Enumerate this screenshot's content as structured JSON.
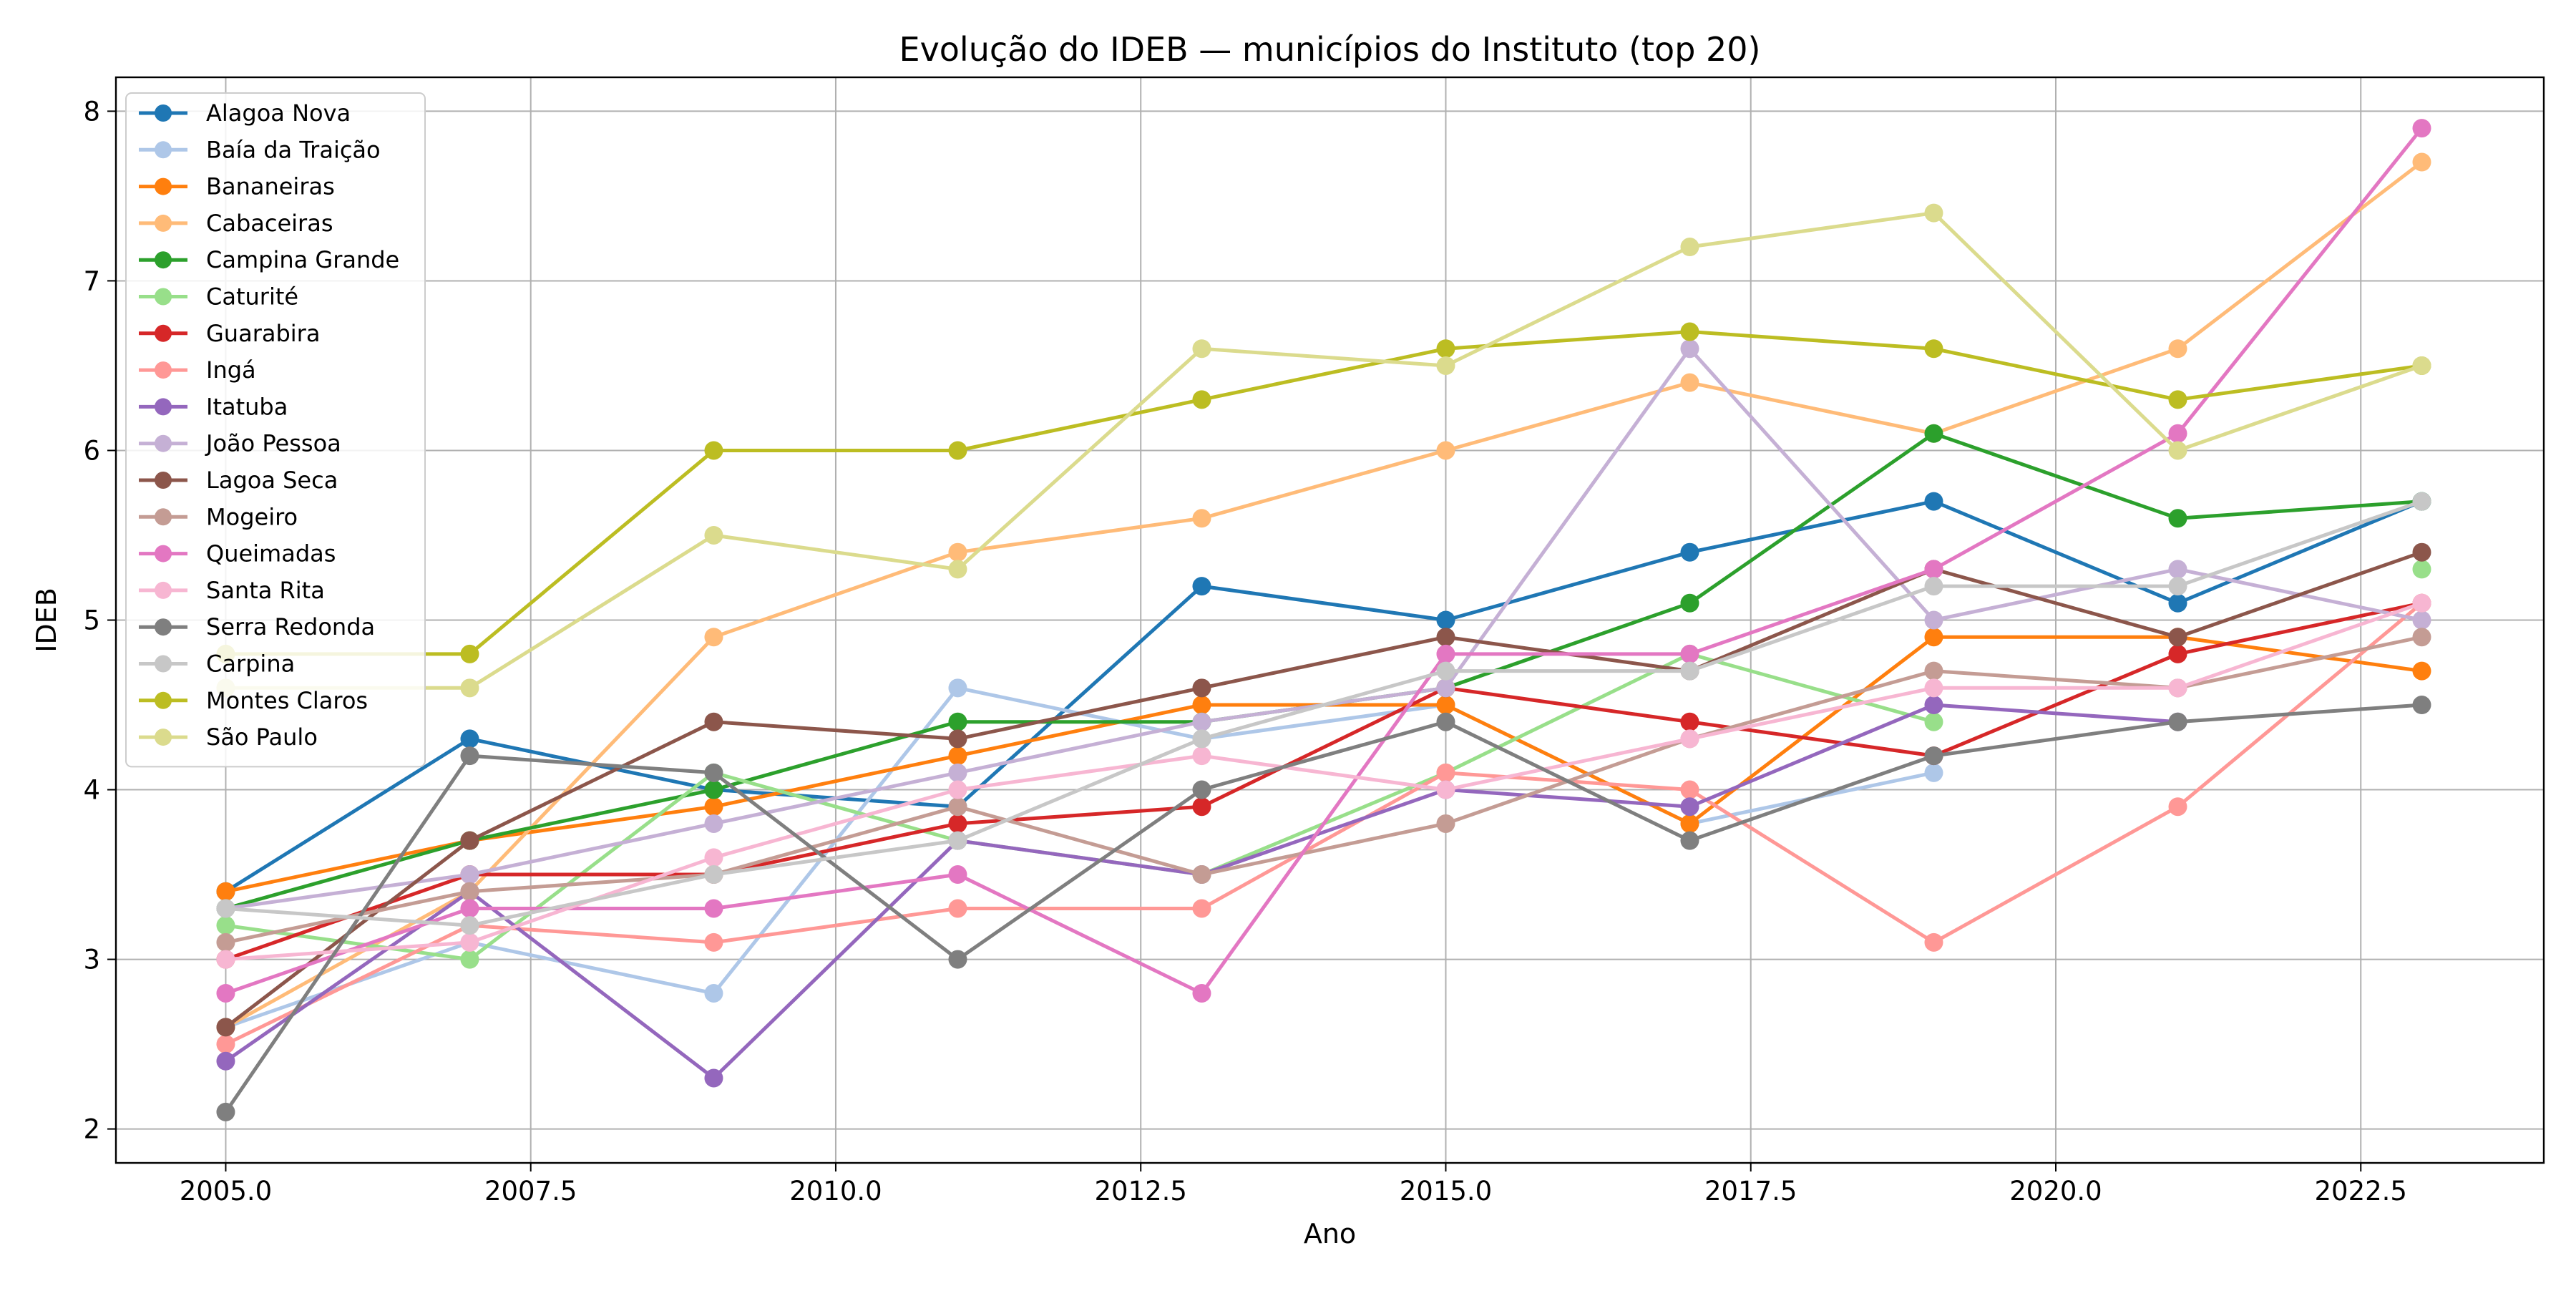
{
  "chart_data": {
    "type": "line",
    "title": "Evolução do IDEB — municípios do Instituto (top 20)",
    "xlabel": "Ano",
    "ylabel": "IDEB",
    "xlim": [
      2004.1,
      2024.0
    ],
    "ylim": [
      1.8,
      8.2
    ],
    "x_ticks": [
      2005.0,
      2007.5,
      2010.0,
      2012.5,
      2015.0,
      2017.5,
      2020.0,
      2022.5
    ],
    "x_tick_labels": [
      "2005.0",
      "2007.5",
      "2010.0",
      "2012.5",
      "2015.0",
      "2017.5",
      "2020.0",
      "2022.5"
    ],
    "y_ticks": [
      2,
      3,
      4,
      5,
      6,
      7,
      8
    ],
    "y_tick_labels": [
      "2",
      "3",
      "4",
      "5",
      "6",
      "7",
      "8"
    ],
    "grid": true,
    "legend_position": "top-left",
    "series": [
      {
        "name": "Alagoa Nova",
        "color": "#1f77b4",
        "x": [
          2005,
          2007,
          2009,
          2011,
          2013,
          2015,
          2017,
          2019,
          2021,
          2023
        ],
        "values": [
          3.4,
          4.3,
          4.0,
          3.9,
          5.2,
          5.0,
          5.4,
          5.7,
          5.1,
          5.7
        ]
      },
      {
        "name": "Baía da Traição",
        "color": "#aec7e8",
        "x": [
          2005,
          2007,
          2009,
          2011,
          2013,
          2015,
          2017,
          2019
        ],
        "values": [
          2.6,
          3.1,
          2.8,
          4.6,
          4.3,
          4.5,
          3.8,
          4.1
        ]
      },
      {
        "name": "Bananeiras",
        "color": "#ff7f0e",
        "x": [
          2005,
          2007,
          2009,
          2011,
          2013,
          2015,
          2017,
          2019,
          2021,
          2023
        ],
        "values": [
          3.4,
          3.7,
          3.9,
          4.2,
          4.5,
          4.5,
          3.8,
          4.9,
          4.9,
          4.7
        ]
      },
      {
        "name": "Cabaceiras",
        "color": "#ffbb78",
        "x": [
          2005,
          2007,
          2009,
          2011,
          2013,
          2015,
          2017,
          2019,
          2021,
          2023
        ],
        "values": [
          2.6,
          3.4,
          4.9,
          5.4,
          5.6,
          6.0,
          6.4,
          6.1,
          6.6,
          7.7
        ]
      },
      {
        "name": "Campina Grande",
        "color": "#2ca02c",
        "x": [
          2005,
          2007,
          2009,
          2011,
          2013,
          2015,
          2017,
          2019,
          2021,
          2023
        ],
        "values": [
          3.3,
          3.7,
          4.0,
          4.4,
          4.4,
          4.6,
          5.1,
          6.1,
          5.6,
          5.7
        ]
      },
      {
        "name": "Caturité",
        "color": "#98df8a",
        "x": [
          2005,
          2007,
          2009,
          2011,
          2013,
          2015,
          2017,
          2019,
          2021,
          2023
        ],
        "values": [
          3.2,
          3.0,
          4.1,
          3.7,
          3.5,
          4.1,
          4.8,
          4.4,
          null,
          5.3
        ]
      },
      {
        "name": "Guarabira",
        "color": "#d62728",
        "x": [
          2005,
          2007,
          2009,
          2011,
          2013,
          2015,
          2017,
          2019,
          2021,
          2023
        ],
        "values": [
          3.0,
          3.5,
          3.5,
          3.8,
          3.9,
          4.6,
          4.4,
          4.2,
          4.8,
          5.1
        ]
      },
      {
        "name": "Ingá",
        "color": "#ff9896",
        "x": [
          2005,
          2007,
          2009,
          2011,
          2013,
          2015,
          2017,
          2019,
          2021,
          2023
        ],
        "values": [
          2.5,
          3.2,
          3.1,
          3.3,
          3.3,
          4.1,
          4.0,
          3.1,
          3.9,
          5.1
        ]
      },
      {
        "name": "Itatuba",
        "color": "#9467bd",
        "x": [
          2005,
          2007,
          2009,
          2011,
          2013,
          2015,
          2017,
          2019,
          2021
        ],
        "values": [
          2.4,
          3.4,
          2.3,
          3.7,
          3.5,
          4.0,
          3.9,
          4.5,
          4.4
        ]
      },
      {
        "name": "João Pessoa",
        "color": "#c5b0d5",
        "x": [
          2005,
          2007,
          2009,
          2011,
          2013,
          2015,
          2017,
          2019,
          2021,
          2023
        ],
        "values": [
          3.3,
          3.5,
          3.8,
          4.1,
          4.4,
          4.6,
          6.6,
          5.0,
          5.3,
          5.0
        ]
      },
      {
        "name": "Lagoa Seca",
        "color": "#8c564b",
        "x": [
          2005,
          2007,
          2009,
          2011,
          2013,
          2015,
          2017,
          2019,
          2021,
          2023
        ],
        "values": [
          2.6,
          3.7,
          4.4,
          4.3,
          4.6,
          4.9,
          4.7,
          5.3,
          4.9,
          5.4
        ]
      },
      {
        "name": "Mogeiro",
        "color": "#c49c94",
        "x": [
          2005,
          2007,
          2009,
          2011,
          2013,
          2015,
          2017,
          2019,
          2021,
          2023
        ],
        "values": [
          3.1,
          3.4,
          3.5,
          3.9,
          3.5,
          3.8,
          4.3,
          4.7,
          4.6,
          4.9
        ]
      },
      {
        "name": "Queimadas",
        "color": "#e377c2",
        "x": [
          2005,
          2007,
          2009,
          2011,
          2013,
          2015,
          2017,
          2019,
          2021,
          2023
        ],
        "values": [
          2.8,
          3.3,
          3.3,
          3.5,
          2.8,
          4.8,
          4.8,
          5.3,
          6.1,
          7.9
        ]
      },
      {
        "name": "Santa Rita",
        "color": "#f7b6d2",
        "x": [
          2005,
          2007,
          2009,
          2011,
          2013,
          2015,
          2017,
          2019,
          2021,
          2023
        ],
        "values": [
          3.0,
          3.1,
          3.6,
          4.0,
          4.2,
          4.0,
          4.3,
          4.6,
          4.6,
          5.1
        ]
      },
      {
        "name": "Serra Redonda",
        "color": "#7f7f7f",
        "x": [
          2005,
          2007,
          2009,
          2011,
          2013,
          2015,
          2017,
          2019,
          2021,
          2023
        ],
        "values": [
          2.1,
          4.2,
          4.1,
          3.0,
          4.0,
          4.4,
          3.7,
          4.2,
          4.4,
          4.5
        ]
      },
      {
        "name": "Carpina",
        "color": "#c7c7c7",
        "x": [
          2005,
          2007,
          2009,
          2011,
          2013,
          2015,
          2017,
          2019,
          2021,
          2023
        ],
        "values": [
          3.3,
          3.2,
          3.5,
          3.7,
          4.3,
          4.7,
          4.7,
          5.2,
          5.2,
          5.7
        ]
      },
      {
        "name": "Montes Claros",
        "color": "#bcbd22",
        "x": [
          2005,
          2007,
          2009,
          2011,
          2013,
          2015,
          2017,
          2019,
          2021,
          2023
        ],
        "values": [
          4.8,
          4.8,
          6.0,
          6.0,
          6.3,
          6.6,
          6.7,
          6.6,
          6.3,
          6.5
        ]
      },
      {
        "name": "São Paulo",
        "color": "#dbdb8d",
        "x": [
          2005,
          2007,
          2009,
          2011,
          2013,
          2015,
          2017,
          2019,
          2021,
          2023
        ],
        "values": [
          4.6,
          4.6,
          5.5,
          5.3,
          6.6,
          6.5,
          7.2,
          7.4,
          6.0,
          6.5
        ]
      }
    ]
  }
}
